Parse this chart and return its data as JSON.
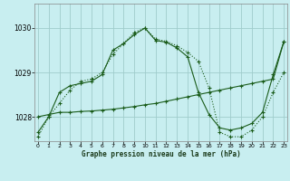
{
  "title": "Graphe pression niveau de la mer (hPa)",
  "background_color": "#c8eef0",
  "grid_color": "#a0cccc",
  "line_color": "#1a5c1a",
  "xlim": [
    -0.3,
    23.3
  ],
  "ylim": [
    1027.45,
    1030.55
  ],
  "yticks": [
    1028,
    1029,
    1030
  ],
  "xticks": [
    0,
    1,
    2,
    3,
    4,
    5,
    6,
    7,
    8,
    9,
    10,
    11,
    12,
    13,
    14,
    15,
    16,
    17,
    18,
    19,
    20,
    21,
    22,
    23
  ],
  "series1_x": [
    0,
    1,
    2,
    3,
    4,
    5,
    6,
    7,
    8,
    9,
    10,
    11,
    12,
    13,
    14,
    15,
    16,
    17,
    18,
    19,
    20,
    21,
    22,
    23
  ],
  "series1_y": [
    1027.65,
    1028.0,
    1028.55,
    1028.7,
    1028.75,
    1028.8,
    1028.95,
    1029.5,
    1029.65,
    1029.85,
    1030.0,
    1029.72,
    1029.68,
    1029.55,
    1029.35,
    1028.55,
    1028.05,
    1027.75,
    1027.7,
    1027.75,
    1027.85,
    1028.1,
    1028.95,
    1029.7
  ],
  "series2_x": [
    0,
    1,
    2,
    3,
    4,
    5,
    6,
    7,
    8,
    9,
    10,
    11,
    12,
    13,
    14,
    15,
    16,
    17,
    18,
    19,
    20,
    21,
    22,
    23
  ],
  "series2_y": [
    1027.55,
    1028.0,
    1028.3,
    1028.6,
    1028.8,
    1028.85,
    1029.0,
    1029.4,
    1029.65,
    1029.9,
    1030.0,
    1029.75,
    1029.7,
    1029.6,
    1029.45,
    1029.25,
    1028.65,
    1027.65,
    1027.55,
    1027.55,
    1027.7,
    1028.0,
    1028.55,
    1029.0
  ],
  "series3_x": [
    0,
    1,
    2,
    3,
    4,
    5,
    6,
    7,
    8,
    9,
    10,
    11,
    12,
    13,
    14,
    15,
    16,
    17,
    18,
    19,
    20,
    21,
    22,
    23
  ],
  "series3_y": [
    1028.0,
    1028.05,
    1028.1,
    1028.1,
    1028.12,
    1028.13,
    1028.15,
    1028.17,
    1028.2,
    1028.23,
    1028.27,
    1028.3,
    1028.35,
    1028.4,
    1028.45,
    1028.5,
    1028.55,
    1028.6,
    1028.65,
    1028.7,
    1028.75,
    1028.8,
    1028.85,
    1029.7
  ]
}
